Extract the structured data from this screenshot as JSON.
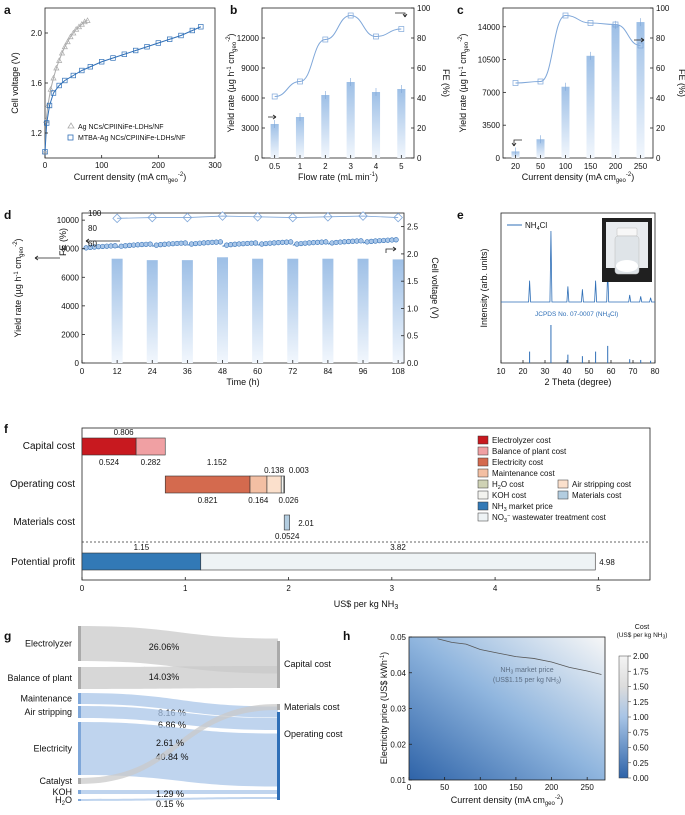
{
  "panels": {
    "a": "a",
    "b": "b",
    "c": "c",
    "d": "d",
    "e": "e",
    "f": "f",
    "g": "g",
    "h": "h"
  },
  "colors": {
    "blue": "#2f6fb7",
    "light_blue": "#a9c6e8",
    "grey": "#aaaaaa"
  },
  "chart_data": [
    {
      "id": "a",
      "type": "scatter",
      "xlabel_main": "Current density (mA cm",
      "xlabel_sub": "geo",
      "xlabel_sup": "-2",
      "xlabel_end": ")",
      "ylabel": "Cell voltage (V)",
      "xlim": [
        0,
        300
      ],
      "ylim": [
        1.0,
        2.2
      ],
      "xticks": [
        "0",
        "100",
        "200",
        "300"
      ],
      "yticks": [
        "1.2",
        "1.6",
        "2.0"
      ],
      "series": [
        {
          "name": "Ag NCs/CPIINiFe-LDHs/NF",
          "marker": "triangle",
          "color": "#aaaaaa",
          "x": [
            0,
            2,
            5,
            10,
            15,
            20,
            25,
            30,
            35,
            40,
            45,
            50,
            55,
            60,
            65,
            70,
            75
          ],
          "y": [
            1.05,
            1.3,
            1.42,
            1.55,
            1.64,
            1.72,
            1.78,
            1.84,
            1.89,
            1.93,
            1.97,
            2.0,
            2.03,
            2.05,
            2.07,
            2.09,
            2.1
          ]
        },
        {
          "name": "MTBA-Ag NCs/CPIINiFe-LDHs/NF",
          "marker": "square",
          "color": "#2f6fb7",
          "x": [
            0,
            3,
            8,
            15,
            25,
            35,
            50,
            65,
            80,
            100,
            120,
            140,
            160,
            180,
            200,
            220,
            240,
            260,
            275
          ],
          "y": [
            1.05,
            1.28,
            1.42,
            1.52,
            1.58,
            1.62,
            1.66,
            1.7,
            1.73,
            1.77,
            1.8,
            1.83,
            1.86,
            1.89,
            1.92,
            1.95,
            1.98,
            2.02,
            2.05
          ]
        }
      ]
    },
    {
      "id": "b",
      "type": "bar",
      "xlabel": "Flow rate (mL min",
      "xlabel_sup": "-1",
      "xlabel_end": ")",
      "ylabel_main": "Yield rate (µg h",
      "ylabel_sup": "-1",
      "ylabel_mid": " cm",
      "ylabel_sub": "geo",
      "ylabel_sup2": "-2",
      "ylabel_end": ")",
      "y2label": "FE (%)",
      "categories": [
        "0.5",
        "1",
        "2",
        "3",
        "4",
        "5"
      ],
      "values": [
        3400,
        4100,
        6300,
        7600,
        6600,
        6900
      ],
      "fe": [
        41,
        51,
        79,
        95,
        81,
        86
      ],
      "ylim": [
        0,
        15000
      ],
      "y2lim": [
        0,
        100
      ],
      "yticks": [
        "0",
        "3000",
        "6000",
        "9000",
        "12000"
      ],
      "y2ticks": [
        "0",
        "20",
        "40",
        "60",
        "80",
        "100"
      ]
    },
    {
      "id": "c",
      "type": "bar",
      "xlabel_main": "Current density (mA cm",
      "xlabel_sub": "geo",
      "xlabel_sup": "-2",
      "xlabel_end": ")",
      "ylabel_main": "Yield rate (µg h",
      "ylabel_sup": "-1",
      "ylabel_mid": " cm",
      "ylabel_sub": "geo",
      "ylabel_sup2": "-2",
      "ylabel_end": ")",
      "y2label": "FE (%)",
      "categories": [
        "20",
        "50",
        "100",
        "150",
        "200",
        "250"
      ],
      "values": [
        700,
        2000,
        7600,
        10900,
        14200,
        14500
      ],
      "fe": [
        50,
        51,
        95,
        90,
        89,
        75
      ],
      "ylim": [
        0,
        16000
      ],
      "y2lim": [
        0,
        100
      ],
      "yticks": [
        "0",
        "3500",
        "7000",
        "10500",
        "14000"
      ],
      "y2ticks": [
        "0",
        "20",
        "40",
        "60",
        "80",
        "100"
      ]
    },
    {
      "id": "d",
      "type": "bar",
      "xlabel": "Time (h)",
      "ylabel_main": "Yield rate (µg h",
      "ylabel_sup": "-1",
      "ylabel_mid": " cm",
      "ylabel_sub": "geo",
      "ylabel_sup2": "-2",
      "ylabel_end": ")",
      "ylabel_fe": "FE (%)",
      "y2label": "Cell voltage (V)",
      "categories": [
        "12",
        "24",
        "36",
        "48",
        "60",
        "72",
        "84",
        "96",
        "108"
      ],
      "values": [
        7300,
        7200,
        7200,
        7400,
        7300,
        7300,
        7300,
        7300,
        7250
      ],
      "fe": [
        93,
        94,
        94,
        96,
        95,
        94,
        95,
        96,
        94
      ],
      "voltage": [
        2.15,
        2.18,
        2.2,
        2.22,
        2.2,
        2.22,
        2.22,
        2.24,
        2.26
      ],
      "xlim": [
        0,
        110
      ],
      "ylim": [
        0,
        10500
      ],
      "y2lim": [
        0,
        2.75
      ],
      "xticks": [
        "0",
        "12",
        "24",
        "36",
        "48",
        "60",
        "72",
        "84",
        "96",
        "108"
      ],
      "yticks": [
        "0",
        "2000",
        "4000",
        "6000",
        "8000",
        "10000"
      ],
      "fe_ticks": [
        "60",
        "80",
        "100"
      ],
      "y2ticks": [
        "0.0",
        "0.5",
        "1.0",
        "1.5",
        "2.0",
        "2.5"
      ]
    },
    {
      "id": "e",
      "type": "line",
      "xlabel": "2 Theta (degree)",
      "ylabel": "Intensity (arb. units)",
      "legend": "NH",
      "legend_sub": "4",
      "legend_end": "Cl",
      "ref_label": "JCPDS No. 07-0007 (NH",
      "ref_sub": "4",
      "ref_end": "Cl)",
      "xlim": [
        10,
        80
      ],
      "xticks": [
        "10",
        "20",
        "30",
        "40",
        "50",
        "60",
        "70",
        "80"
      ],
      "peaks": [
        [
          23,
          0.3
        ],
        [
          32.7,
          1.0
        ],
        [
          40.4,
          0.22
        ],
        [
          47,
          0.18
        ],
        [
          53,
          0.3
        ],
        [
          58.5,
          0.45
        ],
        [
          68.5,
          0.1
        ],
        [
          73.5,
          0.08
        ],
        [
          78,
          0.06
        ]
      ]
    },
    {
      "id": "f",
      "type": "bar",
      "xlabel": "US$ per kg NH",
      "xlabel_sub": "3",
      "xlim": [
        0,
        5.5
      ],
      "xticks": [
        "0",
        "1",
        "2",
        "3",
        "4",
        "5"
      ],
      "rows": {
        "capital": "Capital  cost",
        "operating": "Operating cost",
        "materials": "Materials cost",
        "profit": "Potential profit"
      },
      "capital": {
        "total": "0.806",
        "segments": [
          {
            "name": "Electrolyzer cost",
            "value": 0.524,
            "label": "0.524"
          },
          {
            "name": "Balance of plant cost",
            "value": 0.282,
            "label": "0.282"
          }
        ]
      },
      "operating": {
        "total": "1.152",
        "segments": [
          {
            "name": "Electricity cost",
            "value": 0.821,
            "label": "0.821"
          },
          {
            "name": "Maintenance cost",
            "value": 0.164,
            "label": "0.164"
          },
          {
            "name": "Air stripping cost",
            "value": 0.138,
            "label": "0.138"
          },
          {
            "name": "KOH cost",
            "value": 0.026,
            "label": "0.026"
          },
          {
            "name": "H2O cost",
            "value": 0.003,
            "label": "0.003"
          }
        ]
      },
      "materials": {
        "value": 0.0524,
        "label": "0.0524",
        "end_label": "2.01"
      },
      "profit": {
        "segments": [
          {
            "name": "NH3 market price",
            "value": 1.15,
            "label": "1.15"
          },
          {
            "name": "NO3- wastewater treatment cost",
            "value": 3.82,
            "label": "3.82"
          }
        ],
        "end_label": "4.98"
      },
      "legend": [
        {
          "name": "Electrolyzer cost",
          "color": "#c8191f"
        },
        {
          "name": "Balance of plant cost",
          "color": "#f0a0a3"
        },
        {
          "name": "Electricity cost",
          "color": "#d46a4e"
        },
        {
          "name": "Maintenance cost",
          "color": "#f3bfa3"
        },
        {
          "name": "H",
          "sub": "2",
          "end": "O cost",
          "color": "#cfd2b5"
        },
        {
          "name": "Air stripping cost",
          "color": "#fbe0cc"
        },
        {
          "name": "KOH cost",
          "color": "#f3f3ef"
        },
        {
          "name": "Materials cost",
          "color": "#b3cde0"
        },
        {
          "name": "NH",
          "sub": "3",
          "end": " market price",
          "color": "#3279b6"
        },
        {
          "name": "NO",
          "sub": "3",
          "sup": "−",
          "end": " wastewater treatment cost",
          "color": "#eef3f5"
        }
      ]
    },
    {
      "id": "g",
      "type": "sankey",
      "sources": [
        {
          "name": "Electrolyzer",
          "pct": "26.06%",
          "color": "#c9c9c9"
        },
        {
          "name": "Balance of plant",
          "pct": "14.03%",
          "color": "#c9c9c9"
        },
        {
          "name": "Maintenance",
          "pct": "8.16 %",
          "color": "#a9c6e8"
        },
        {
          "name": "Air stripping",
          "pct": "6.86 %",
          "color": "#a9c6e8"
        },
        {
          "name": "Electricity",
          "pct": "40.84 %",
          "color": "#a9c6e8"
        },
        {
          "name": "Catalyst",
          "pct": "2.61 %",
          "color": "#c9c9c9"
        },
        {
          "name": "KOH",
          "pct": "1.29 %",
          "color": "#a9c6e8"
        },
        {
          "name": "H",
          "sub": "2",
          "end": "O",
          "pct": "0.15 %",
          "color": "#a9c6e8"
        }
      ],
      "targets": [
        {
          "name": "Capital cost"
        },
        {
          "name": "Materials cost"
        },
        {
          "name": "Operating cost"
        }
      ]
    },
    {
      "id": "h",
      "type": "heatmap",
      "xlabel_main": "Current density (mA cm",
      "xlabel_sub": "geo",
      "xlabel_sup": "-2",
      "xlabel_end": ")",
      "ylabel": "Electricity price (US$ kWh",
      "ylabel_sup": "-1",
      "ylabel_end": ")",
      "xlim": [
        0,
        275
      ],
      "ylim": [
        0.01,
        0.05
      ],
      "xticks": [
        "0",
        "50",
        "100",
        "150",
        "200",
        "250"
      ],
      "yticks": [
        "0.01",
        "0.02",
        "0.03",
        "0.04",
        "0.05"
      ],
      "annotation_line1": "NH",
      "annotation_sub": "3",
      "annotation_end": " market price",
      "annotation_line2": "(US$1.15 per kg NH",
      "annotation_sub2": "3",
      "annotation_end2": ")",
      "colorbar_title": "Cost",
      "colorbar_unit": "(US$ per kg NH",
      "colorbar_sub": "3",
      "colorbar_end": ")",
      "colorbar_ticks": [
        "0.00",
        "0.25",
        "0.50",
        "0.75",
        "1.00",
        "1.25",
        "1.50",
        "1.75",
        "2.00"
      ],
      "colorbar_range": [
        0,
        2
      ],
      "contour_x": [
        40,
        60,
        80,
        100,
        125,
        150,
        175,
        200,
        225,
        250,
        270
      ],
      "contour_y": [
        0.0495,
        0.0485,
        0.048,
        0.0465,
        0.0455,
        0.0445,
        0.044,
        0.043,
        0.0415,
        0.0405,
        0.0395
      ]
    }
  ]
}
